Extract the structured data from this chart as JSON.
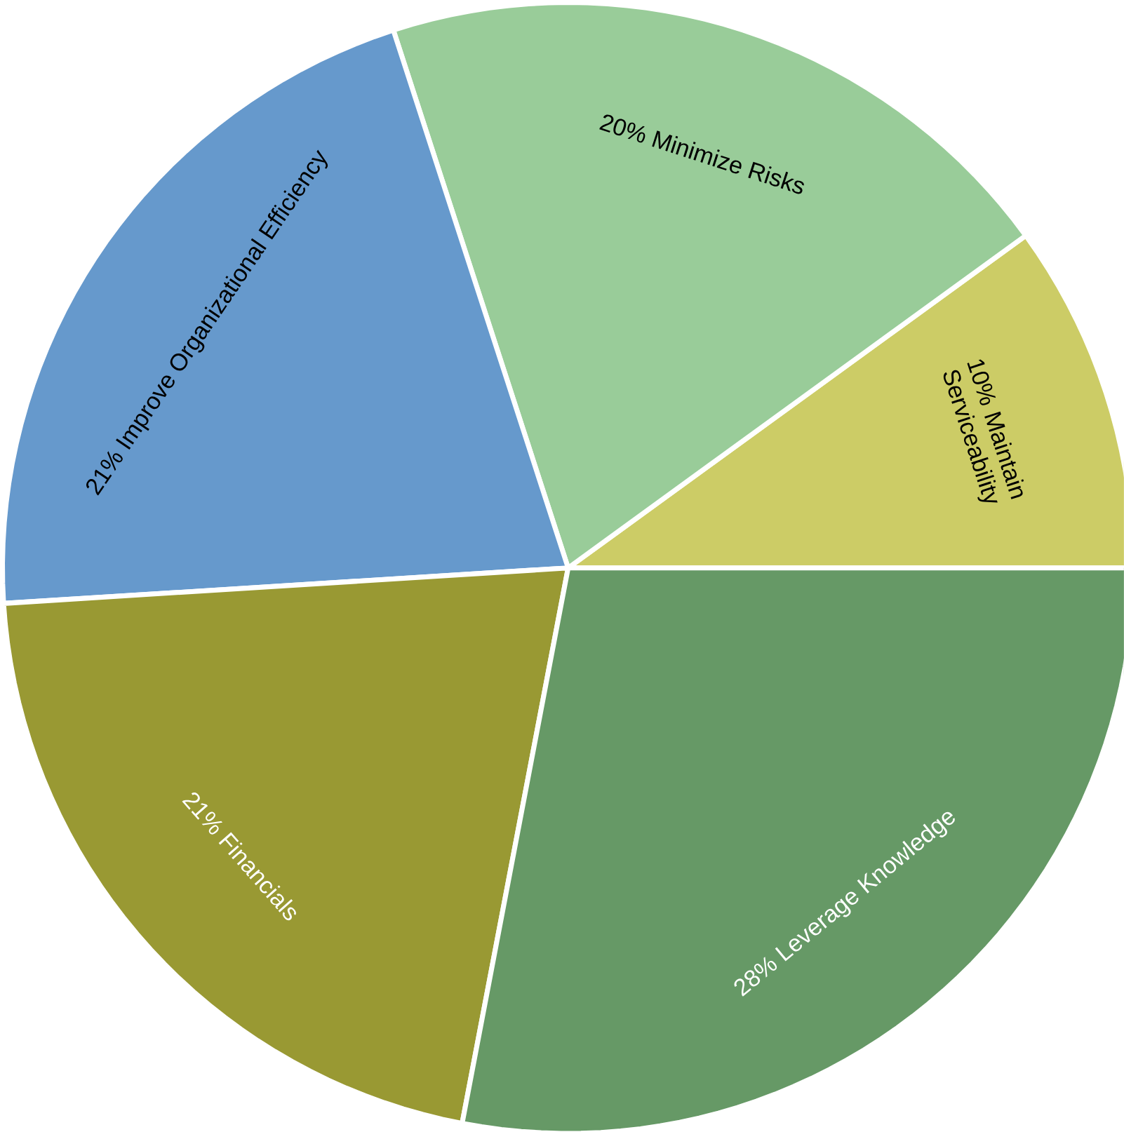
{
  "chart_data": {
    "type": "pie",
    "categories": [
      "Maintain Serviceability",
      "Minimize Risks",
      "Improve Organizational Efficiency",
      "Financials",
      "Leverage Knowledge"
    ],
    "values": [
      10,
      20,
      21,
      21,
      28
    ],
    "value_labels": [
      "10%",
      "20%",
      "21%",
      "21%",
      "28%"
    ],
    "colors": [
      "#cccc66",
      "#99cc99",
      "#6699cc",
      "#999933",
      "#669966"
    ]
  }
}
